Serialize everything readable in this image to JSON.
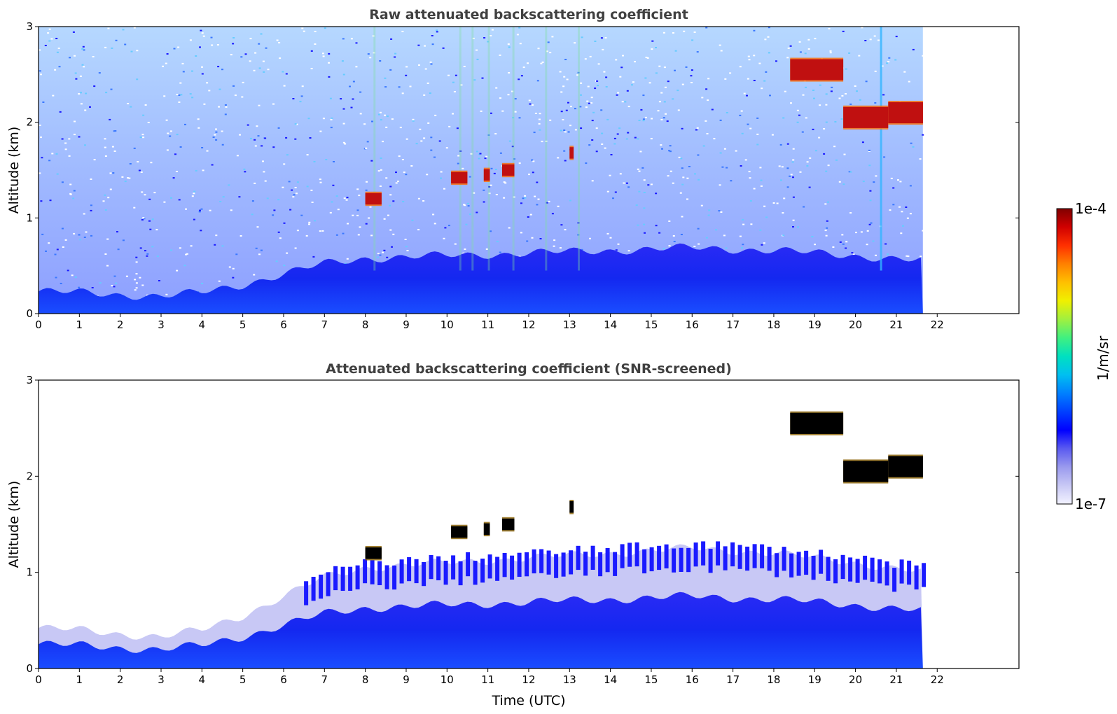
{
  "chart_data": [
    {
      "type": "heatmap",
      "title": "Raw attenuated backscattering coefficient",
      "xlabel": "",
      "ylabel": "Altitude (km)",
      "xlim": [
        0,
        24
      ],
      "ylim": [
        0,
        3
      ],
      "x_ticks": [
        "0",
        "1",
        "2",
        "3",
        "4",
        "5",
        "6",
        "7",
        "8",
        "9",
        "10",
        "11",
        "12",
        "13",
        "14",
        "15",
        "16",
        "17",
        "18",
        "19",
        "20",
        "21",
        "22"
      ],
      "y_ticks": [
        "0",
        "1",
        "2",
        "3"
      ],
      "data_end_hour": 21.65,
      "features": {
        "boundary_layer_top_km": [
          [
            0,
            0.42
          ],
          [
            1,
            0.4
          ],
          [
            2,
            0.36
          ],
          [
            3,
            0.33
          ],
          [
            4,
            0.4
          ],
          [
            5,
            0.55
          ],
          [
            6,
            0.75
          ],
          [
            7,
            0.95
          ],
          [
            8,
            1.05
          ],
          [
            10,
            1.1
          ],
          [
            12,
            1.15
          ],
          [
            14,
            1.2
          ],
          [
            16,
            1.25
          ],
          [
            18,
            1.2
          ],
          [
            20,
            1.1
          ],
          [
            21.65,
            1.0
          ]
        ],
        "cloud_segments": [
          {
            "x_start": 8.0,
            "x_end": 8.4,
            "altitude_km": 1.2
          },
          {
            "x_start": 10.1,
            "x_end": 10.5,
            "altitude_km": 1.42
          },
          {
            "x_start": 10.9,
            "x_end": 11.05,
            "altitude_km": 1.45
          },
          {
            "x_start": 11.35,
            "x_end": 11.65,
            "altitude_km": 1.5
          },
          {
            "x_start": 13.0,
            "x_end": 13.1,
            "altitude_km": 1.68
          },
          {
            "x_start": 18.4,
            "x_end": 19.7,
            "altitude_km": 2.55
          },
          {
            "x_start": 19.7,
            "x_end": 20.8,
            "altitude_km": 2.05
          },
          {
            "x_start": 20.8,
            "x_end": 21.65,
            "altitude_km": 2.1
          }
        ]
      }
    },
    {
      "type": "heatmap",
      "title": "Attenuated backscattering coefficient (SNR-screened)",
      "xlabel": "Time (UTC)",
      "ylabel": "Altitude (km)",
      "xlim": [
        0,
        24
      ],
      "ylim": [
        0,
        3
      ],
      "x_ticks": [
        "0",
        "1",
        "2",
        "3",
        "4",
        "5",
        "6",
        "7",
        "8",
        "9",
        "10",
        "11",
        "12",
        "13",
        "14",
        "15",
        "16",
        "17",
        "18",
        "19",
        "20",
        "21",
        "22"
      ],
      "y_ticks": [
        "0",
        "1",
        "2",
        "3"
      ],
      "data_end_hour": 21.65
    }
  ],
  "colorbar": {
    "min_label": "1e-7",
    "max_label": "1e-4",
    "unit": "1/m/sr",
    "scale": "log",
    "colors": [
      "#f2f2ff",
      "#c8c8f5",
      "#9a9aee",
      "#5a5af0",
      "#0000ff",
      "#0040ff",
      "#0080ff",
      "#00c0f0",
      "#00e0c0",
      "#40f080",
      "#a0f040",
      "#f0f000",
      "#ffc000",
      "#ff8000",
      "#ff3000",
      "#d00000",
      "#800000"
    ]
  }
}
